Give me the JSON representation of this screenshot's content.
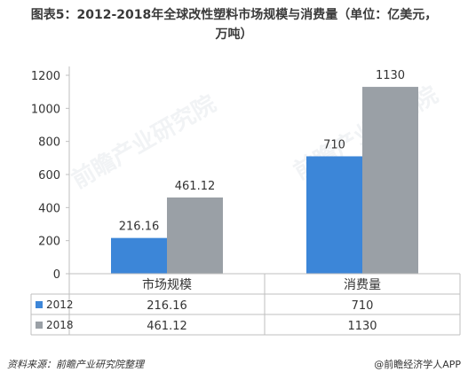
{
  "title_line1": "图表5：2012-2018年全球改性塑料市场规模与消费量（单位：亿美元，",
  "title_line2": "万吨）",
  "footer_source": "资料来源：前瞻产业研究院整理",
  "footer_brand": "@前瞻经济学人APP",
  "watermark": "前瞻产业研究院",
  "colors": {
    "series_2012": "#3c86d8",
    "series_2018": "#9aa0a6",
    "grid": "#d9d9d9",
    "axis": "#333333"
  },
  "chart_data": {
    "type": "bar",
    "categories": [
      "市场规模",
      "消费量"
    ],
    "series": [
      {
        "name": "2012",
        "values": [
          216.16,
          710
        ],
        "labels": [
          "216.16",
          "710"
        ]
      },
      {
        "name": "2018",
        "values": [
          461.12,
          1130
        ],
        "labels": [
          "461.12",
          "1130"
        ]
      }
    ],
    "ylim": [
      0,
      1200
    ],
    "yticks": [
      0,
      200,
      400,
      600,
      800,
      1000,
      1200
    ],
    "grid": false,
    "legend": "data-table"
  }
}
